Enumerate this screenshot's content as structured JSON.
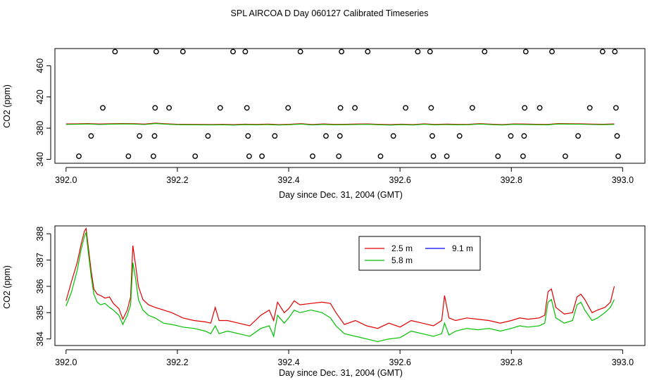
{
  "page": {
    "title": "SPL AIRCOA D  Day 060127  Calibrated Timeseries"
  },
  "colors": {
    "red": "#e00000",
    "green": "#00c000",
    "blue": "#0000ff",
    "axis": "#000000"
  },
  "chart_data": [
    {
      "type": "scatter",
      "name": "top-panel",
      "xlabel": "Day since Dec. 31, 2004 (GMT)",
      "ylabel": "CO2 (ppm)",
      "xlim": [
        391.98,
        393.04
      ],
      "ylim": [
        335,
        482
      ],
      "xticks": [
        392.0,
        392.2,
        392.4,
        392.6,
        392.8,
        393.0
      ],
      "xtick_labels": [
        "392.0",
        "392.2",
        "392.4",
        "392.6",
        "392.8",
        "393.0"
      ],
      "yticks": [
        340,
        380,
        420,
        460
      ],
      "ytick_labels": [
        "340",
        "380",
        "420",
        "460"
      ],
      "points": [
        [
          392.023,
          344
        ],
        [
          392.045,
          370
        ],
        [
          392.066,
          406
        ],
        [
          392.088,
          478
        ],
        [
          392.112,
          344
        ],
        [
          392.132,
          370
        ],
        [
          392.157,
          344
        ],
        [
          392.159,
          370
        ],
        [
          392.16,
          406
        ],
        [
          392.162,
          478
        ],
        [
          392.185,
          406
        ],
        [
          392.21,
          478
        ],
        [
          392.232,
          344
        ],
        [
          392.255,
          370
        ],
        [
          392.277,
          406
        ],
        [
          392.3,
          478
        ],
        [
          392.322,
          478
        ],
        [
          392.325,
          406
        ],
        [
          392.327,
          370
        ],
        [
          392.329,
          344
        ],
        [
          392.352,
          344
        ],
        [
          392.375,
          370
        ],
        [
          392.399,
          406
        ],
        [
          392.421,
          478
        ],
        [
          392.443,
          344
        ],
        [
          392.467,
          370
        ],
        [
          392.49,
          344
        ],
        [
          392.492,
          370
        ],
        [
          392.493,
          406
        ],
        [
          392.495,
          478
        ],
        [
          392.519,
          406
        ],
        [
          392.542,
          478
        ],
        [
          392.565,
          344
        ],
        [
          392.588,
          370
        ],
        [
          392.61,
          406
        ],
        [
          392.632,
          478
        ],
        [
          392.654,
          478
        ],
        [
          392.656,
          406
        ],
        [
          392.658,
          370
        ],
        [
          392.66,
          344
        ],
        [
          392.684,
          344
        ],
        [
          392.707,
          370
        ],
        [
          392.73,
          406
        ],
        [
          392.752,
          478
        ],
        [
          392.776,
          344
        ],
        [
          392.799,
          370
        ],
        [
          392.821,
          344
        ],
        [
          392.823,
          370
        ],
        [
          392.824,
          406
        ],
        [
          392.826,
          478
        ],
        [
          392.851,
          406
        ],
        [
          392.873,
          478
        ],
        [
          392.897,
          344
        ],
        [
          392.92,
          370
        ],
        [
          392.941,
          406
        ],
        [
          392.964,
          478
        ],
        [
          392.986,
          478
        ],
        [
          392.988,
          406
        ],
        [
          392.99,
          370
        ],
        [
          392.992,
          344
        ]
      ],
      "series": [
        {
          "name": "2.5 m",
          "color": "#e00000",
          "x_start": 392.0,
          "x_end": 392.985,
          "values": [
            385.4,
            385.6,
            385.9,
            385.3,
            385.7,
            385.9,
            385.8,
            385.2,
            386.5,
            385.6,
            385.0,
            384.9,
            384.8,
            384.7,
            384.9,
            384.5,
            385.1,
            384.8,
            385.2,
            384.6,
            385.0,
            385.8,
            384.7,
            385.4,
            384.9,
            385.0,
            385.3,
            385.5,
            384.9,
            384.5,
            385.1,
            384.6,
            385.6,
            384.8,
            385.2,
            384.9,
            385.0,
            385.8,
            385.1,
            384.6,
            385.5,
            385.3,
            385.0,
            384.8,
            385.9,
            385.7,
            385.6,
            385.2,
            385.0,
            385.4
          ]
        }
      ]
    },
    {
      "type": "line",
      "name": "bottom-panel",
      "xlabel": "Day since Dec. 31, 2004 (GMT)",
      "ylabel": "CO2 (ppm)",
      "xlim": [
        391.98,
        393.04
      ],
      "ylim": [
        383.75,
        388.3
      ],
      "xticks": [
        392.0,
        392.2,
        392.4,
        392.6,
        392.8,
        393.0
      ],
      "xtick_labels": [
        "392.0",
        "392.2",
        "392.4",
        "392.6",
        "392.8",
        "393.0"
      ],
      "yticks": [
        384,
        385,
        386,
        387,
        388
      ],
      "ytick_labels": [
        "384",
        "385",
        "386",
        "387",
        "388"
      ],
      "legend": {
        "position": "top-center",
        "entries": [
          "2.5 m",
          "9.1 m",
          "5.8 m"
        ]
      },
      "series": [
        {
          "name": "2.5 m",
          "color": "#e00000",
          "points": [
            [
              392.0,
              385.45
            ],
            [
              392.01,
              386.2
            ],
            [
              392.02,
              386.9
            ],
            [
              392.027,
              387.6
            ],
            [
              392.033,
              388.1
            ],
            [
              392.036,
              388.2
            ],
            [
              392.04,
              387.5
            ],
            [
              392.045,
              386.6
            ],
            [
              392.05,
              385.9
            ],
            [
              392.056,
              385.7
            ],
            [
              392.062,
              385.65
            ],
            [
              392.07,
              385.55
            ],
            [
              392.078,
              385.6
            ],
            [
              392.085,
              385.35
            ],
            [
              392.095,
              385.15
            ],
            [
              392.102,
              384.75
            ],
            [
              392.11,
              385.1
            ],
            [
              392.116,
              385.6
            ],
            [
              392.12,
              387.55
            ],
            [
              392.125,
              386.8
            ],
            [
              392.13,
              386.0
            ],
            [
              392.138,
              385.5
            ],
            [
              392.148,
              385.3
            ],
            [
              392.16,
              385.2
            ],
            [
              392.175,
              385.1
            ],
            [
              392.19,
              385.0
            ],
            [
              392.21,
              384.8
            ],
            [
              392.23,
              384.7
            ],
            [
              392.25,
              384.65
            ],
            [
              392.26,
              384.6
            ],
            [
              392.268,
              385.2
            ],
            [
              392.275,
              384.7
            ],
            [
              392.29,
              384.7
            ],
            [
              392.31,
              384.6
            ],
            [
              392.33,
              384.5
            ],
            [
              392.35,
              384.9
            ],
            [
              392.365,
              385.1
            ],
            [
              392.373,
              384.7
            ],
            [
              392.38,
              385.4
            ],
            [
              392.392,
              385.0
            ],
            [
              392.4,
              385.15
            ],
            [
              392.41,
              385.45
            ],
            [
              392.42,
              385.3
            ],
            [
              392.44,
              385.35
            ],
            [
              392.46,
              385.4
            ],
            [
              392.475,
              385.35
            ],
            [
              392.485,
              385.0
            ],
            [
              392.5,
              384.55
            ],
            [
              392.52,
              384.7
            ],
            [
              392.54,
              384.5
            ],
            [
              392.56,
              384.4
            ],
            [
              392.58,
              384.6
            ],
            [
              392.6,
              384.45
            ],
            [
              392.62,
              384.7
            ],
            [
              392.64,
              384.6
            ],
            [
              392.66,
              384.5
            ],
            [
              392.675,
              384.7
            ],
            [
              392.68,
              385.65
            ],
            [
              392.688,
              384.8
            ],
            [
              392.7,
              384.7
            ],
            [
              392.72,
              384.8
            ],
            [
              392.74,
              384.75
            ],
            [
              392.76,
              384.7
            ],
            [
              392.78,
              384.6
            ],
            [
              392.8,
              384.7
            ],
            [
              392.815,
              384.8
            ],
            [
              392.83,
              384.75
            ],
            [
              392.85,
              384.8
            ],
            [
              392.86,
              384.9
            ],
            [
              392.866,
              385.8
            ],
            [
              392.872,
              385.9
            ],
            [
              392.88,
              385.2
            ],
            [
              392.895,
              384.95
            ],
            [
              392.91,
              385.0
            ],
            [
              392.918,
              385.6
            ],
            [
              392.925,
              385.7
            ],
            [
              392.932,
              385.5
            ],
            [
              392.945,
              385.0
            ],
            [
              392.955,
              385.1
            ],
            [
              392.968,
              385.2
            ],
            [
              392.978,
              385.4
            ],
            [
              392.985,
              386.0
            ]
          ]
        },
        {
          "name": "9.1 m",
          "color": "#0000ff",
          "points": []
        },
        {
          "name": "5.8 m",
          "color": "#00c000",
          "points": [
            [
              392.0,
              385.25
            ],
            [
              392.01,
              385.8
            ],
            [
              392.02,
              386.6
            ],
            [
              392.027,
              387.4
            ],
            [
              392.033,
              387.9
            ],
            [
              392.036,
              388.05
            ],
            [
              392.04,
              387.3
            ],
            [
              392.045,
              386.4
            ],
            [
              392.05,
              385.7
            ],
            [
              392.056,
              385.4
            ],
            [
              392.062,
              385.3
            ],
            [
              392.07,
              385.35
            ],
            [
              392.078,
              385.2
            ],
            [
              392.085,
              385.1
            ],
            [
              392.095,
              384.9
            ],
            [
              392.102,
              384.55
            ],
            [
              392.11,
              384.9
            ],
            [
              392.116,
              385.3
            ],
            [
              392.12,
              386.9
            ],
            [
              392.125,
              386.3
            ],
            [
              392.13,
              385.5
            ],
            [
              392.138,
              385.1
            ],
            [
              392.148,
              384.9
            ],
            [
              392.16,
              384.8
            ],
            [
              392.175,
              384.6
            ],
            [
              392.19,
              384.55
            ],
            [
              392.21,
              384.45
            ],
            [
              392.23,
              384.4
            ],
            [
              392.25,
              384.3
            ],
            [
              392.26,
              384.2
            ],
            [
              392.268,
              384.5
            ],
            [
              392.275,
              384.2
            ],
            [
              392.29,
              384.3
            ],
            [
              392.31,
              384.2
            ],
            [
              392.33,
              384.1
            ],
            [
              392.35,
              384.4
            ],
            [
              392.365,
              384.5
            ],
            [
              392.373,
              384.1
            ],
            [
              392.38,
              384.9
            ],
            [
              392.392,
              384.6
            ],
            [
              392.4,
              384.8
            ],
            [
              392.41,
              385.1
            ],
            [
              392.42,
              385.0
            ],
            [
              392.44,
              385.1
            ],
            [
              392.46,
              385.0
            ],
            [
              392.475,
              384.8
            ],
            [
              392.485,
              384.5
            ],
            [
              392.5,
              384.2
            ],
            [
              392.52,
              384.1
            ],
            [
              392.54,
              384.0
            ],
            [
              392.56,
              383.9
            ],
            [
              392.58,
              384.0
            ],
            [
              392.6,
              384.05
            ],
            [
              392.62,
              384.3
            ],
            [
              392.64,
              384.2
            ],
            [
              392.66,
              384.1
            ],
            [
              392.675,
              384.2
            ],
            [
              392.68,
              384.6
            ],
            [
              392.688,
              384.15
            ],
            [
              392.7,
              384.3
            ],
            [
              392.72,
              384.4
            ],
            [
              392.74,
              384.35
            ],
            [
              392.76,
              384.4
            ],
            [
              392.78,
              384.3
            ],
            [
              392.8,
              384.4
            ],
            [
              392.815,
              384.5
            ],
            [
              392.83,
              384.45
            ],
            [
              392.85,
              384.5
            ],
            [
              392.86,
              384.6
            ],
            [
              392.866,
              385.4
            ],
            [
              392.872,
              385.5
            ],
            [
              392.88,
              384.8
            ],
            [
              392.895,
              384.6
            ],
            [
              392.91,
              384.7
            ],
            [
              392.918,
              385.3
            ],
            [
              392.925,
              385.4
            ],
            [
              392.932,
              385.1
            ],
            [
              392.945,
              384.7
            ],
            [
              392.955,
              384.8
            ],
            [
              392.968,
              385.0
            ],
            [
              392.978,
              385.2
            ],
            [
              392.985,
              385.5
            ]
          ]
        }
      ]
    }
  ]
}
